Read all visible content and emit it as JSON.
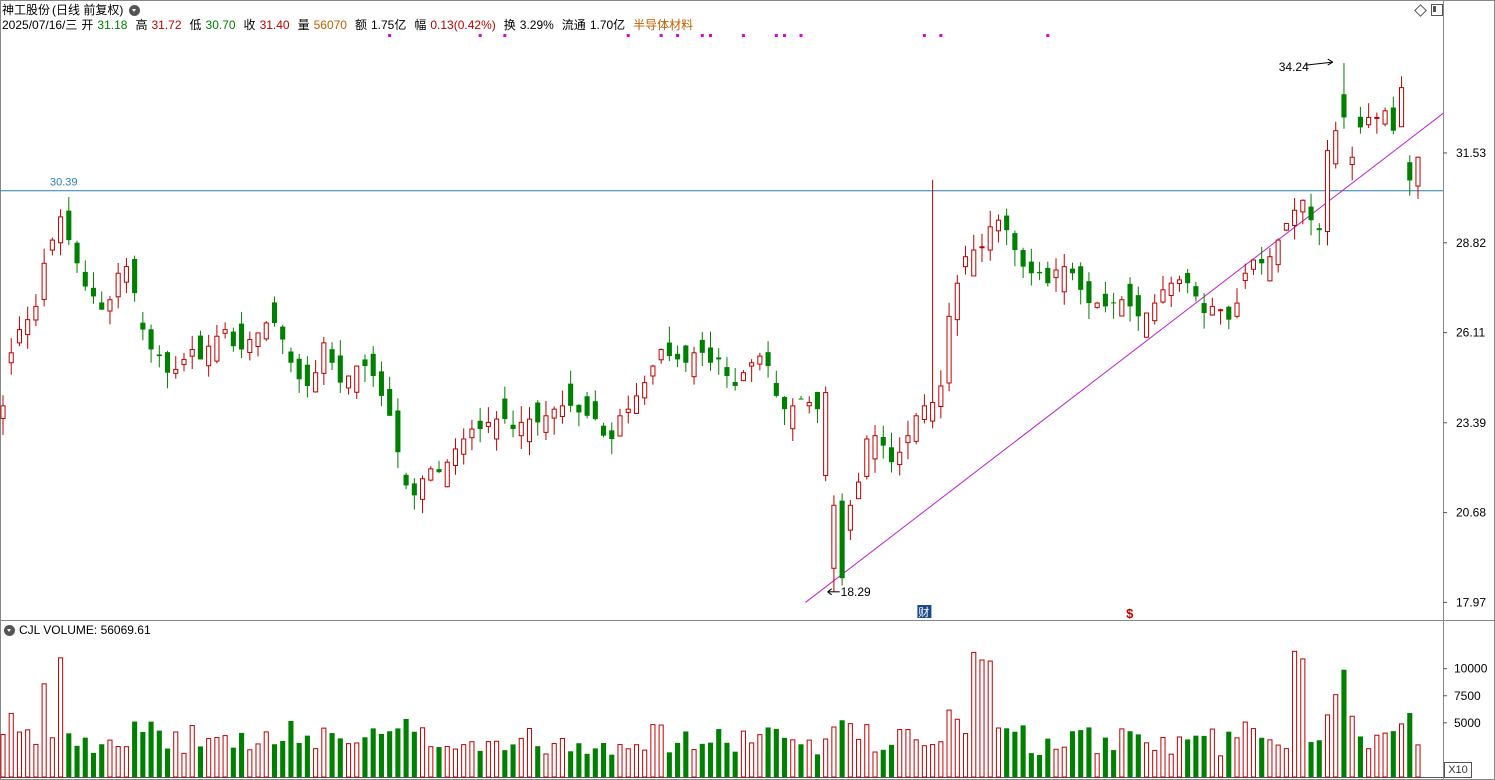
{
  "header": {
    "stock_name": "神工股份",
    "period": "(日线 前复权)",
    "date": "2025/07/16/三",
    "open_label": "开",
    "open": "31.18",
    "high_label": "高",
    "high": "31.72",
    "low_label": "低",
    "low": "30.70",
    "close_label": "收",
    "close": "31.40",
    "volume_label": "量",
    "volume": "56070",
    "amount_label": "额",
    "amount": "1.75亿",
    "change_label": "幅",
    "change": "0.13(0.42%)",
    "turnover_label": "换",
    "turnover": "3.29%",
    "float_label": "流通",
    "float_value": "1.70亿",
    "sector": "半导体材料"
  },
  "volume_panel": {
    "indicator_label": "CJL VOLUME: 56069.61",
    "zoom_label": "X10"
  },
  "colors": {
    "up": "#c00000",
    "down": "#008000",
    "horizontal_line": "#2a7db5",
    "trend_line": "#c020d0",
    "marker_dots": "#e000e0"
  },
  "chart_data": [
    {
      "type": "candlestick",
      "title": "",
      "ylim": [
        17.5,
        35.6
      ],
      "yticks": [
        "31.53",
        "28.82",
        "26.11",
        "23.39",
        "20.68",
        "17.97"
      ],
      "horizontal_line": {
        "value": 30.39,
        "label": "30.39"
      },
      "trend_line": {
        "from": {
          "index": 99,
          "value": 17.97
        },
        "to": {
          "index": 166,
          "value": 31.0
        }
      },
      "annotations": [
        {
          "text": "34.24",
          "index": 162,
          "value": 34.24
        },
        {
          "text": "18.29",
          "index": 100,
          "value": 18.29
        }
      ],
      "event_markers": [
        {
          "text": "财",
          "index": 112
        },
        {
          "text": "$",
          "index": 137
        }
      ],
      "candles": []
    },
    {
      "type": "bar",
      "title": "",
      "ylim": [
        0,
        13200
      ],
      "yticks": [
        "10000",
        "7500",
        "5000"
      ],
      "volumes": []
    }
  ]
}
